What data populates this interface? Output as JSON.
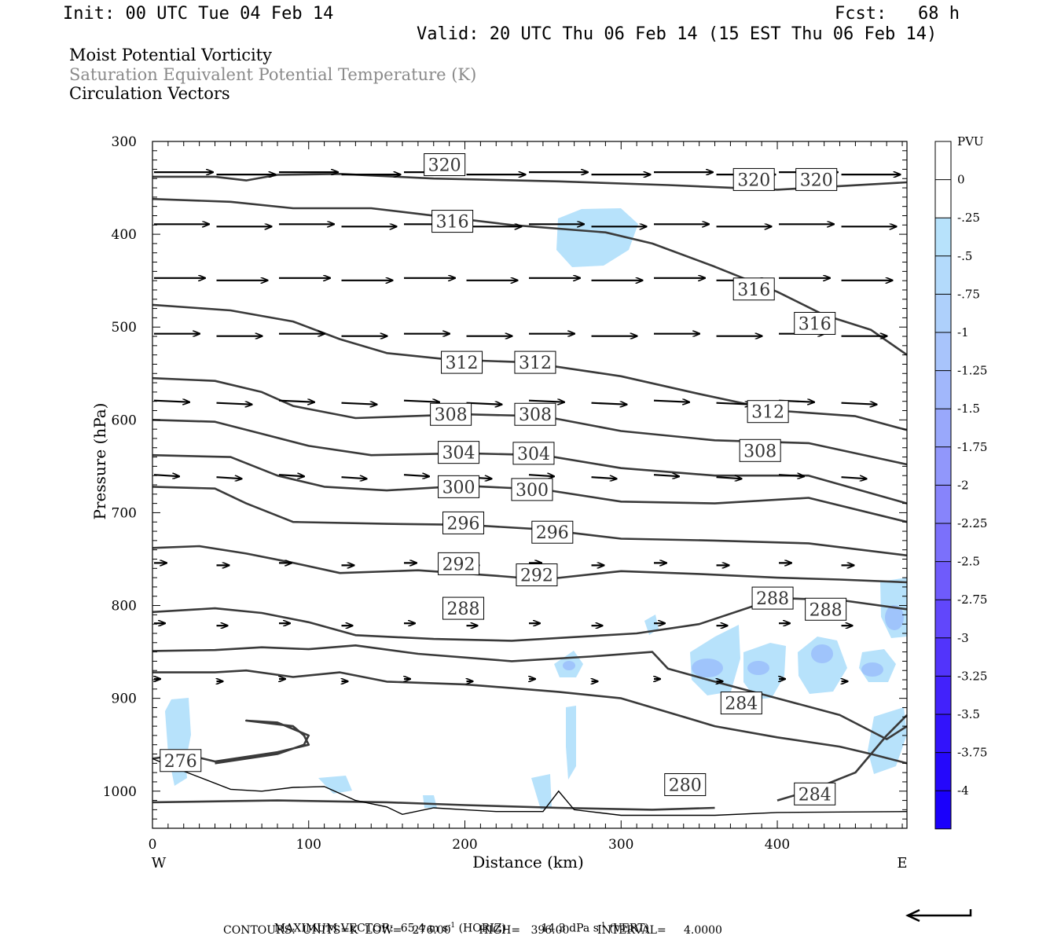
{
  "header": {
    "init": "Init: 00 UTC Tue 04 Feb 14",
    "fcst_label": "Fcst:",
    "fcst_value": "68 h",
    "valid": "Valid: 20 UTC Thu 06 Feb 14 (15 EST Thu 06 Feb 14)"
  },
  "fields": [
    "Moist Potential Vorticity",
    "Saturation Equivalent Potential Temperature (K)",
    "Circulation Vectors"
  ],
  "footer": {
    "max_vector_label": "MAXIMUM VECTOR:",
    "horiz": "65.4 m s",
    "horiz_exp": "-1",
    "horiz_tag": "(HORIZ)",
    "vert": "14.3 dPa s",
    "vert_exp": "-1",
    "vert_tag": "(VERT)",
    "contours": "CONTOURS:  UNITS=K  LOW=   276.00        HIGH=   396.00        INTERVAL=     4.0000"
  },
  "chart_data": {
    "type": "cross-section",
    "xlabel": "Distance (km)",
    "ylabel": "Pressure (hPa)",
    "xlim": [
      0,
      483
    ],
    "ylim": [
      1040,
      300
    ],
    "x_ticks": [
      "0",
      "100",
      "200",
      "300",
      "400"
    ],
    "x_tick_values": [
      0,
      100,
      200,
      300,
      400
    ],
    "y_ticks": [
      "300",
      "400",
      "500",
      "600",
      "700",
      "800",
      "900",
      "1000"
    ],
    "y_tick_values": [
      300,
      400,
      500,
      600,
      700,
      800,
      900,
      1000
    ],
    "west_label": "W",
    "east_label": "E",
    "colorbar": {
      "title": "PVU",
      "labels": [
        "0",
        "-.25",
        "-.5",
        "-.75",
        "-1",
        "-1.25",
        "-1.5",
        "-1.75",
        "-2",
        "-2.25",
        "-2.5",
        "-2.75",
        "-3",
        "-3.25",
        "-3.5",
        "-3.75",
        "-4"
      ],
      "colors": [
        "#ffffff",
        "#ffffff",
        "#b7e2fb",
        "#b3dafb",
        "#aed0fb",
        "#a8c4fb",
        "#a1b7fb",
        "#99a8fb",
        "#9197fb",
        "#8784fb",
        "#7b70fb",
        "#6f5bfb",
        "#6147fb",
        "#5234fb",
        "#4222fb",
        "#3213fb",
        "#2508fb",
        "#1a00fb"
      ]
    },
    "contour_labels": [
      {
        "text": "320",
        "x": 187,
        "p": 325
      },
      {
        "text": "320",
        "x": 385,
        "p": 341
      },
      {
        "text": "320",
        "x": 425,
        "p": 341
      },
      {
        "text": "316",
        "x": 192,
        "p": 386
      },
      {
        "text": "316",
        "x": 385,
        "p": 459
      },
      {
        "text": "316",
        "x": 424,
        "p": 496
      },
      {
        "text": "312",
        "x": 198,
        "p": 538
      },
      {
        "text": "312",
        "x": 245,
        "p": 538
      },
      {
        "text": "312",
        "x": 394,
        "p": 591
      },
      {
        "text": "308",
        "x": 191,
        "p": 594
      },
      {
        "text": "308",
        "x": 245,
        "p": 594
      },
      {
        "text": "308",
        "x": 389,
        "p": 633
      },
      {
        "text": "304",
        "x": 196,
        "p": 635
      },
      {
        "text": "304",
        "x": 244,
        "p": 636
      },
      {
        "text": "300",
        "x": 196,
        "p": 672
      },
      {
        "text": "300",
        "x": 243,
        "p": 675
      },
      {
        "text": "296",
        "x": 199,
        "p": 711
      },
      {
        "text": "296",
        "x": 256,
        "p": 721
      },
      {
        "text": "292",
        "x": 196,
        "p": 755
      },
      {
        "text": "292",
        "x": 246,
        "p": 767
      },
      {
        "text": "288",
        "x": 199,
        "p": 803
      },
      {
        "text": "288",
        "x": 397,
        "p": 792
      },
      {
        "text": "288",
        "x": 431,
        "p": 804
      },
      {
        "text": "284",
        "x": 377,
        "p": 905
      },
      {
        "text": "284",
        "x": 424,
        "p": 1003
      },
      {
        "text": "280",
        "x": 341,
        "p": 993
      },
      {
        "text": "276",
        "x": 18,
        "p": 967
      }
    ]
  }
}
